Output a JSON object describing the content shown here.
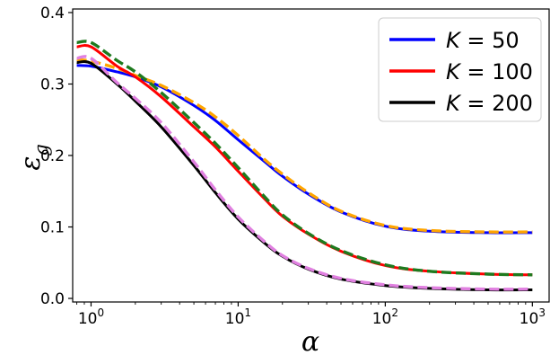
{
  "chart_data": {
    "type": "line",
    "xscale": "log",
    "xlim": [
      0.75,
      1300
    ],
    "ylim": [
      -0.005,
      0.405
    ],
    "xlabel": "α",
    "ylabel": "εg",
    "ylabel_main": "ε",
    "ylabel_sub": "g",
    "xticks": [
      {
        "value": 1,
        "base": "10",
        "exp": "0"
      },
      {
        "value": 10,
        "base": "10",
        "exp": "1"
      },
      {
        "value": 100,
        "base": "10",
        "exp": "2"
      },
      {
        "value": 1000,
        "base": "10",
        "exp": "3"
      }
    ],
    "yticks": [
      0.0,
      0.1,
      0.2,
      0.3,
      0.4
    ],
    "ytick_labels": [
      "0.0",
      "0.1",
      "0.2",
      "0.3",
      "0.4"
    ],
    "grid": false,
    "legend_position": "top-right",
    "legend": [
      {
        "prefix": "K",
        "eq": " = 50",
        "color": "#0000ff"
      },
      {
        "prefix": "K",
        "eq": " = 100",
        "color": "#ff0000"
      },
      {
        "prefix": "K",
        "eq": " = 200",
        "color": "#000000"
      }
    ],
    "series": [
      {
        "name": "K = 50",
        "color": "#0000ff",
        "style": "solid",
        "x": [
          0.8,
          1,
          1.5,
          2,
          3,
          5,
          7,
          10,
          15,
          20,
          30,
          50,
          100,
          200,
          500,
          1000
        ],
        "y": [
          0.326,
          0.325,
          0.317,
          0.31,
          0.296,
          0.27,
          0.249,
          0.222,
          0.192,
          0.171,
          0.146,
          0.121,
          0.101,
          0.094,
          0.092,
          0.092
        ]
      },
      {
        "series_role": "theory",
        "color": "#ffa500",
        "style": "dashed",
        "x": [
          0.8,
          1,
          1.5,
          2,
          3,
          5,
          7,
          10,
          15,
          20,
          30,
          50,
          100,
          200,
          500,
          1000
        ],
        "y": [
          0.334,
          0.332,
          0.322,
          0.312,
          0.298,
          0.274,
          0.254,
          0.228,
          0.195,
          0.174,
          0.148,
          0.122,
          0.102,
          0.095,
          0.093,
          0.093
        ]
      },
      {
        "name": "K = 100",
        "color": "#ff0000",
        "style": "solid",
        "x": [
          0.8,
          1,
          1.5,
          2,
          3,
          5,
          7,
          10,
          15,
          20,
          30,
          50,
          100,
          200,
          500,
          1000
        ],
        "y": [
          0.352,
          0.352,
          0.325,
          0.31,
          0.282,
          0.24,
          0.212,
          0.178,
          0.14,
          0.115,
          0.09,
          0.066,
          0.046,
          0.038,
          0.034,
          0.033
        ]
      },
      {
        "series_role": "theory",
        "color": "#1e7a1e",
        "style": "dashed",
        "x": [
          0.8,
          1,
          1.5,
          2,
          3,
          5,
          7,
          10,
          15,
          20,
          30,
          50,
          100,
          200,
          500,
          1000
        ],
        "y": [
          0.358,
          0.358,
          0.333,
          0.317,
          0.288,
          0.246,
          0.217,
          0.183,
          0.143,
          0.117,
          0.091,
          0.067,
          0.047,
          0.038,
          0.034,
          0.033
        ]
      },
      {
        "name": "K = 200",
        "color": "#000000",
        "style": "solid",
        "x": [
          0.8,
          1,
          1.5,
          2,
          3,
          5,
          7,
          10,
          15,
          20,
          30,
          50,
          100,
          200,
          500,
          1000
        ],
        "y": [
          0.33,
          0.329,
          0.3,
          0.276,
          0.24,
          0.186,
          0.148,
          0.111,
          0.078,
          0.059,
          0.041,
          0.027,
          0.018,
          0.014,
          0.012,
          0.012
        ]
      },
      {
        "series_role": "theory",
        "color": "#e080e0",
        "style": "dashed",
        "x": [
          0.8,
          1,
          1.5,
          2,
          3,
          5,
          7,
          10,
          15,
          20,
          30,
          50,
          100,
          200,
          500,
          1000
        ],
        "y": [
          0.336,
          0.336,
          0.302,
          0.28,
          0.246,
          0.191,
          0.152,
          0.114,
          0.08,
          0.06,
          0.042,
          0.028,
          0.019,
          0.015,
          0.013,
          0.013
        ]
      }
    ]
  }
}
